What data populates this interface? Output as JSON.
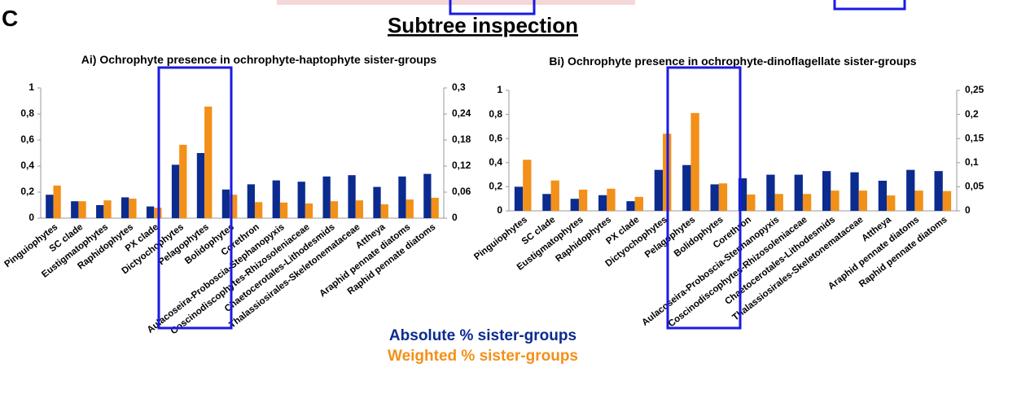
{
  "panel_label": "C",
  "heading": "Subtree inspection",
  "chart_data": [
    {
      "type": "bar",
      "title": "Ai) Ochrophyte presence in ochrophyte-haptophyte sister-groups",
      "categories": [
        "Pinguiophytes",
        "SC clade",
        "Eustigmatophytes",
        "Raphidophytes",
        "PX clade",
        "Dictyochophytes",
        "Pelagophytes",
        "Bolidophytes",
        "Corethron",
        "Aulacoseira-Proboscia-Stephanopyxis",
        "Coscinodiscophytes-Rhizosoleniaceae",
        "Chaetocerotales-Lithodesmids",
        "Thalassiosirales-Skeletonemataceae",
        "Attheya",
        "Araphid pennate diatoms",
        "Raphid pennate diatoms"
      ],
      "series": [
        {
          "name": "Absolute % sister-groups",
          "color": "#0b2b8f",
          "values": [
            0.18,
            0.13,
            0.1,
            0.16,
            0.09,
            0.41,
            0.5,
            0.22,
            0.26,
            0.29,
            0.28,
            0.32,
            0.33,
            0.24,
            0.32,
            0.34
          ]
        },
        {
          "name": "Weighted % sister-groups",
          "color": "#f39019",
          "axis": "y2",
          "values": [
            0.075,
            0.039,
            0.041,
            0.045,
            0.024,
            0.169,
            0.257,
            0.054,
            0.037,
            0.036,
            0.034,
            0.039,
            0.041,
            0.032,
            0.043,
            0.047
          ]
        }
      ],
      "ylim": [
        0,
        1
      ],
      "yticks": [
        0,
        {
          "value": 0.2,
          "label": "0,2"
        },
        {
          "value": 0.4,
          "label": "0,4"
        },
        {
          "value": 0.6,
          "label": "0,6"
        },
        {
          "value": 0.8,
          "label": "0,8"
        },
        1
      ],
      "y2lim": [
        0,
        0.3
      ],
      "y2ticks": [
        0,
        {
          "value": 0.06,
          "label": "0,06"
        },
        {
          "value": 0.12,
          "label": "0,12"
        },
        {
          "value": 0.18,
          "label": "0,18"
        },
        {
          "value": 0.24,
          "label": "0,24"
        },
        {
          "value": 0.3,
          "label": "0,3"
        }
      ]
    },
    {
      "type": "bar",
      "title": "Bi) Ochrophyte presence in ochrophyte-dinoflagellate sister-groups",
      "categories": [
        "Pinguiophytes",
        "SC clade",
        "Eustigmatophytes",
        "Raphidophytes",
        "PX clade",
        "Dictyochophytes",
        "Pelagophytes",
        "Bolidophytes",
        "Corethron",
        "Aulacoseira-Proboscia-Stephanopyxis",
        "Coscinodiscophytes-Rhizosoleniaceae",
        "Chaetocerotales-Lithodesmids",
        "Thalassiosirales-Skeletonemataceae",
        "Attheya",
        "Araphid pennate diatoms",
        "Raphid pennate diatoms"
      ],
      "series": [
        {
          "name": "Absolute % sister-groups",
          "color": "#0b2b8f",
          "values": [
            0.2,
            0.14,
            0.1,
            0.13,
            0.08,
            0.34,
            0.38,
            0.22,
            0.27,
            0.3,
            0.3,
            0.33,
            0.32,
            0.25,
            0.34,
            0.33
          ]
        },
        {
          "name": "Weighted % sister-groups",
          "color": "#f39019",
          "axis": "y2",
          "values": [
            0.106,
            0.063,
            0.044,
            0.046,
            0.029,
            0.16,
            0.203,
            0.057,
            0.034,
            0.035,
            0.035,
            0.042,
            0.042,
            0.032,
            0.042,
            0.041
          ]
        }
      ],
      "ylim": [
        0,
        1
      ],
      "yticks": [
        0,
        {
          "value": 0.2,
          "label": "0,2"
        },
        {
          "value": 0.4,
          "label": "0,4"
        },
        {
          "value": 0.6,
          "label": "0,6"
        },
        {
          "value": 0.8,
          "label": "0,8"
        },
        1
      ],
      "y2lim": [
        0,
        0.25
      ],
      "y2ticks": [
        0,
        {
          "value": 0.05,
          "label": "0,05"
        },
        {
          "value": 0.1,
          "label": "0,1"
        },
        {
          "value": 0.15,
          "label": "0,15"
        },
        {
          "value": 0.2,
          "label": "0,2"
        },
        {
          "value": 0.25,
          "label": "0,25"
        }
      ]
    }
  ]
}
